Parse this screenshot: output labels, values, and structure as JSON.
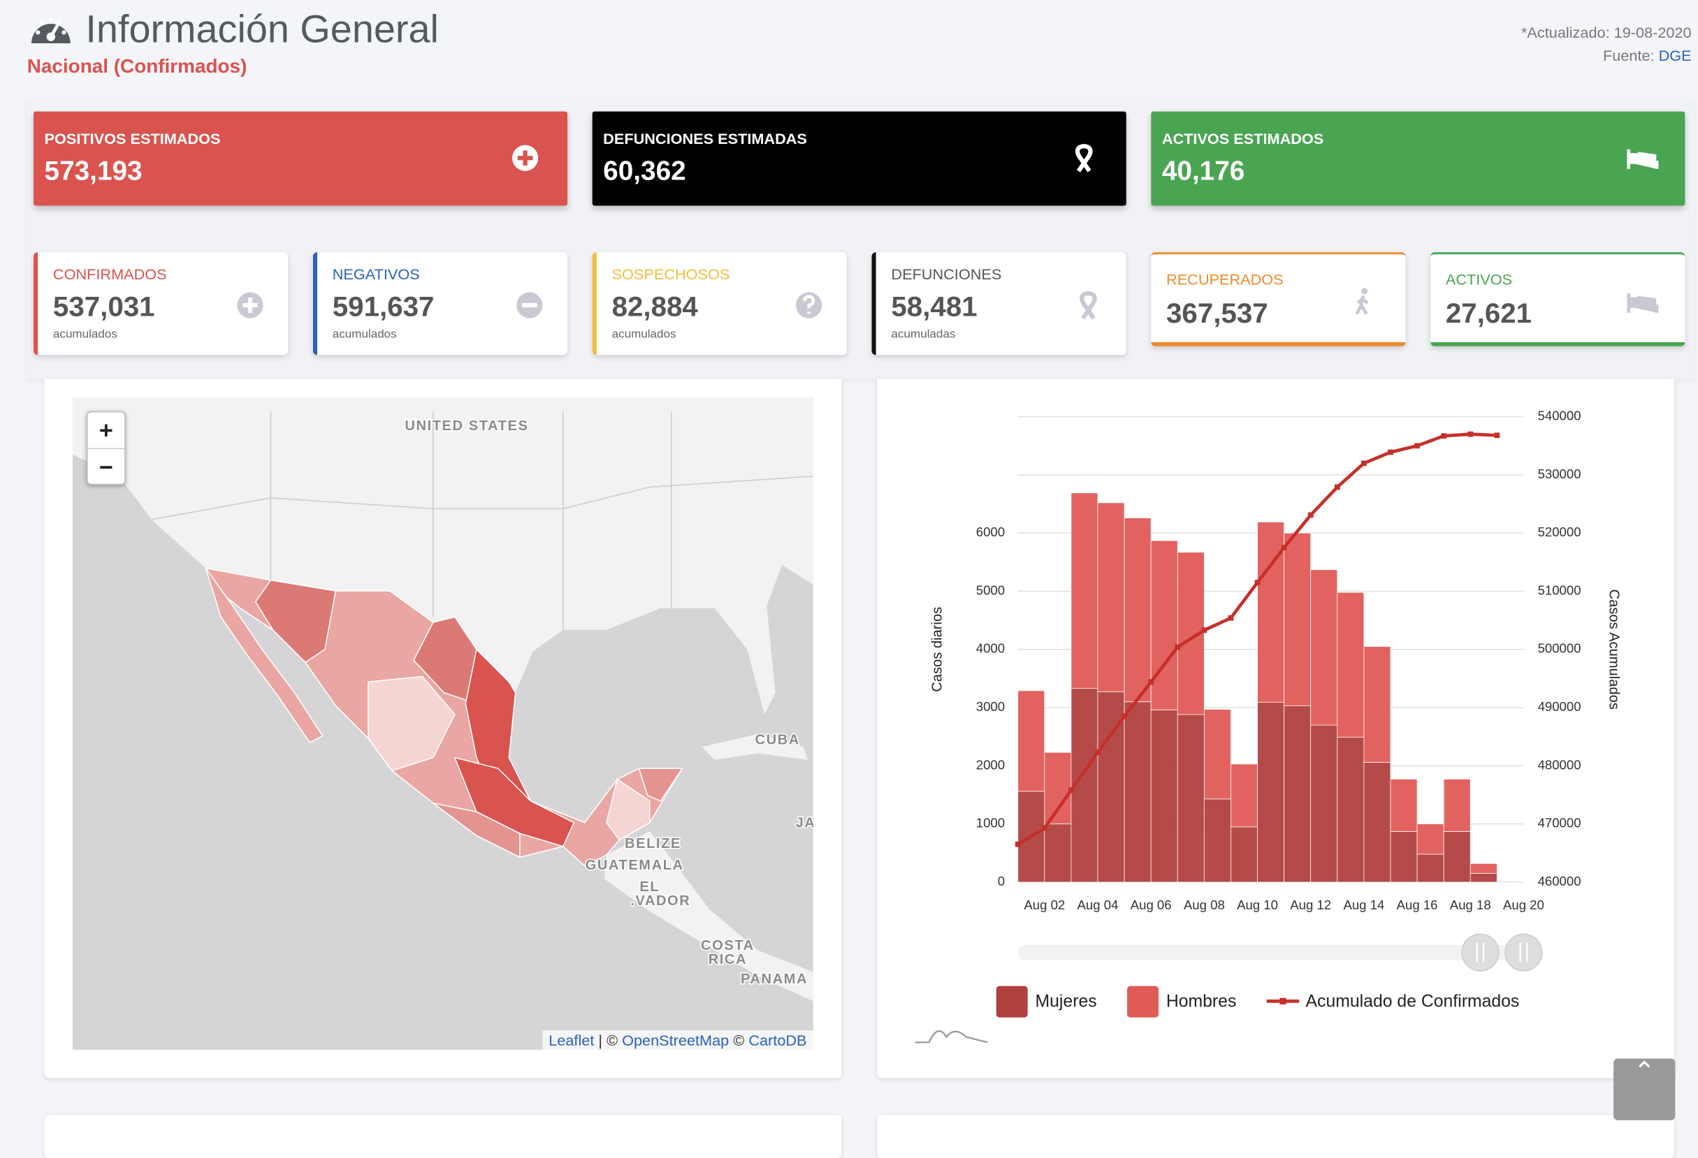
{
  "header": {
    "title": "Información General",
    "subtitle": "Nacional (Confirmados)",
    "updated": "*Actualizado: 19-08-2020",
    "source_label": "Fuente:",
    "source_link": "DGE"
  },
  "summary_cards": [
    {
      "title": "POSITIVOS ESTIMADOS",
      "value": "573,193",
      "color": "#d9534f"
    },
    {
      "title": "DEFUNCIONES ESTIMADAS",
      "value": "60,362",
      "color": "#000000"
    },
    {
      "title": "ACTIVOS ESTIMADOS",
      "value": "40,176",
      "color": "#4aa553"
    }
  ],
  "detail_cards": [
    {
      "title": "CONFIRMADOS",
      "value": "537,031",
      "note": "acumulados",
      "color": "#d9534f"
    },
    {
      "title": "NEGATIVOS",
      "value": "591,637",
      "note": "acumulados",
      "color": "#2a62b8"
    },
    {
      "title": "SOSPECHOSOS",
      "value": "82,884",
      "note": "acumulados",
      "color": "#f0c03a"
    },
    {
      "title": "DEFUNCIONES",
      "value": "58,481",
      "note": "acumuladas",
      "color": "#111111"
    },
    {
      "title": "RECUPERADOS",
      "value": "367,537",
      "color": "#ee8a2a"
    },
    {
      "title": "ACTIVOS",
      "value": "27,621",
      "color": "#4aa553"
    }
  ],
  "map": {
    "zoom_in": "+",
    "zoom_out": "−",
    "labels": [
      "UNITED STATES",
      "CUBA",
      "BELIZE",
      "GUATEMALA",
      "EL",
      ".VADOR",
      "COSTA",
      "RICA",
      "PANAMA",
      "JA"
    ],
    "attribution": [
      "Leaflet",
      "| ©",
      "OpenStreetMap",
      "©",
      "CartoDB"
    ]
  },
  "chart_data": {
    "type": "bar",
    "stacked": true,
    "categories": [
      null,
      "Aug 02",
      null,
      "Aug 04",
      null,
      "Aug 06",
      null,
      "Aug 08",
      null,
      "Aug 10",
      null,
      "Aug 12",
      null,
      "Aug 14",
      null,
      "Aug 16",
      null,
      "Aug 18",
      null,
      "Aug 20"
    ],
    "series": [
      {
        "name": "Mujeres",
        "color": "#b0413e",
        "values": [
          1560,
          1000,
          3330,
          3270,
          3100,
          2960,
          2880,
          1430,
          950,
          3090,
          3030,
          2700,
          2490,
          2060,
          870,
          480,
          870,
          150,
          null,
          null
        ]
      },
      {
        "name": "Hombres",
        "color": "#e05a56",
        "values": [
          1730,
          1230,
          3360,
          3250,
          3160,
          2910,
          2790,
          1540,
          1080,
          3100,
          2970,
          2670,
          2490,
          1990,
          900,
          520,
          900,
          170,
          null,
          null
        ]
      },
      {
        "name": "Acumulado de Confirmados",
        "color": "#c62f2a",
        "type": "line",
        "axis": "y2",
        "values": [
          466500,
          469300,
          475800,
          482300,
          488500,
          494400,
          500400,
          503300,
          505400,
          511500,
          517500,
          523100,
          527900,
          532000,
          533900,
          535000,
          536700,
          537000,
          536800,
          null
        ]
      }
    ],
    "ylabel": "Casos diarios",
    "y2label": "Casos Acumulados",
    "ylim": [
      0,
      8000
    ],
    "yticks": [
      0,
      1000,
      2000,
      3000,
      4000,
      5000,
      6000
    ],
    "y2lim": [
      460000,
      540000
    ],
    "y2ticks": [
      460000,
      470000,
      480000,
      490000,
      500000,
      510000,
      520000,
      530000,
      540000
    ],
    "grid": true,
    "legend": "bottom"
  }
}
